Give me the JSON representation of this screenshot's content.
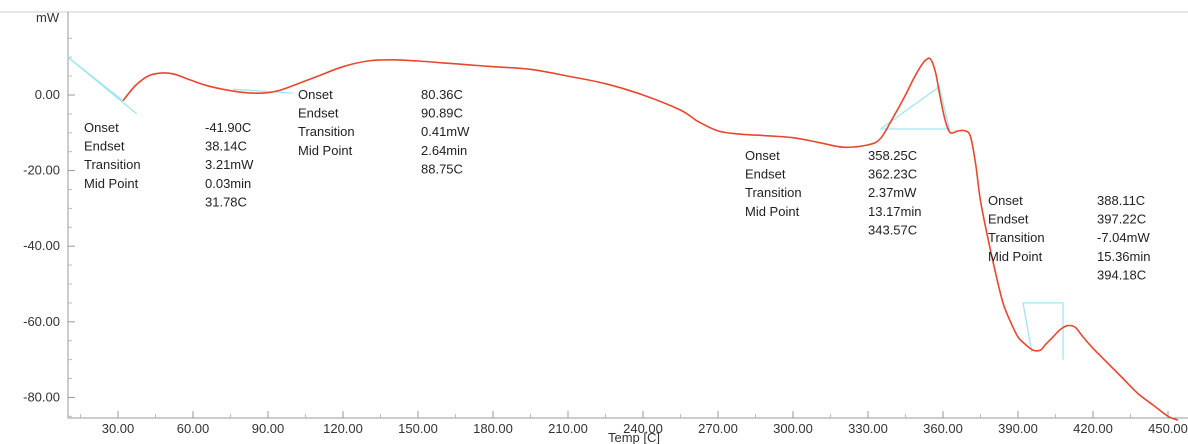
{
  "chart_data": {
    "type": "line",
    "xlabel": "Temp  [C]",
    "ylabel": "mW",
    "xlim": [
      10,
      458
    ],
    "ylim": [
      -85,
      21
    ],
    "x_ticks": [
      "30.00",
      "60.00",
      "90.00",
      "120.00",
      "150.00",
      "180.00",
      "210.00",
      "240.00",
      "270.00",
      "300.00",
      "330.00",
      "360.00",
      "390.00",
      "420.00",
      "450.00"
    ],
    "y_ticks": [
      "0.00",
      "-20.00",
      "-40.00",
      "-60.00",
      "-80.00"
    ],
    "grid": false,
    "series": [
      {
        "color": "#e8472f",
        "x": [
          32,
          37,
          42,
          47,
          52,
          58,
          65,
          72,
          80,
          88,
          95,
          102,
          110,
          120,
          130,
          140,
          150,
          160,
          170,
          180,
          195,
          210,
          225,
          240,
          255,
          262,
          270,
          278,
          290,
          300,
          310,
          320,
          330,
          335,
          340,
          345,
          348,
          351,
          353,
          355,
          357,
          359,
          361,
          363,
          366,
          369,
          371,
          373,
          375,
          378,
          381,
          384,
          387,
          390,
          393,
          396,
          399,
          401,
          404,
          407,
          410,
          413,
          416,
          420,
          426,
          432,
          438,
          444,
          450,
          454
        ],
        "y": [
          -1.5,
          2.5,
          5,
          5.8,
          5.6,
          4.2,
          2.6,
          1.5,
          0.7,
          0.5,
          1.3,
          3,
          5,
          7.5,
          9,
          9.3,
          9,
          8.5,
          8,
          7.5,
          6.8,
          5,
          3,
          0,
          -4,
          -7,
          -9.5,
          -10.3,
          -10.8,
          -11.3,
          -12.5,
          -13.8,
          -13.2,
          -11.5,
          -6,
          0,
          4,
          7.5,
          9.2,
          9.5,
          6,
          -1,
          -7,
          -10,
          -9.5,
          -9.5,
          -11,
          -18,
          -28,
          -38,
          -47,
          -55,
          -60,
          -64,
          -66,
          -67.5,
          -67.5,
          -66,
          -64,
          -62,
          -61,
          -61.5,
          -64,
          -67,
          -71,
          -75,
          -79,
          -82,
          -85,
          -86
        ]
      }
    ],
    "baselines": [
      {
        "x": [
          10,
          37.5
        ],
        "y": [
          10,
          -5
        ]
      },
      {
        "x": [
          10,
          32
        ],
        "y": [
          10,
          -1.5
        ]
      },
      {
        "x": [
          76,
          100
        ],
        "y": [
          1.5,
          0.5
        ]
      },
      {
        "x": [
          335,
          358.5,
          362.5
        ],
        "y": [
          -9,
          2.2,
          -9
        ]
      },
      {
        "x": [
          335,
          362.5
        ],
        "y": [
          -9,
          -9
        ]
      },
      {
        "x": [
          392,
          408,
          408
        ],
        "y": [
          -55,
          -55,
          -70
        ]
      },
      {
        "x": [
          392,
          395.5
        ],
        "y": [
          -55,
          -68
        ]
      }
    ],
    "annotations": [
      {
        "labels": [
          "Onset",
          "Endset",
          "Transition",
          "Mid Point"
        ],
        "values": [
          "-41.90C",
          "38.14C",
          "3.21mW",
          "0.03min",
          "31.78C"
        ]
      },
      {
        "labels": [
          "Onset",
          "Endset",
          "Transition",
          "Mid Point"
        ],
        "values": [
          "80.36C",
          "90.89C",
          "0.41mW",
          "2.64min",
          "88.75C"
        ]
      },
      {
        "labels": [
          "Onset",
          "Endset",
          "Transition",
          "Mid Point"
        ],
        "values": [
          "358.25C",
          "362.23C",
          "2.37mW",
          "13.17min",
          "343.57C"
        ]
      },
      {
        "labels": [
          "Onset",
          "Endset",
          "Transition",
          "Mid Point"
        ],
        "values": [
          "388.11C",
          "397.22C",
          "-7.04mW",
          "15.36min",
          "394.18C"
        ]
      }
    ]
  }
}
